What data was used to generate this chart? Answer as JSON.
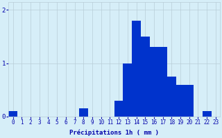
{
  "hours": [
    0,
    1,
    2,
    3,
    4,
    5,
    6,
    7,
    8,
    9,
    10,
    11,
    12,
    13,
    14,
    15,
    16,
    17,
    18,
    19,
    20,
    21,
    22,
    23
  ],
  "values": [
    0.1,
    0.0,
    0.0,
    0.0,
    0.0,
    0.0,
    0.0,
    0.0,
    0.15,
    0.0,
    0.0,
    0.0,
    0.3,
    1.0,
    1.8,
    1.5,
    1.3,
    1.3,
    0.75,
    0.6,
    0.6,
    0.0,
    0.1,
    0.0
  ],
  "bar_color": "#0033cc",
  "background_color": "#d6eef8",
  "grid_color": "#b8cdd8",
  "text_color": "#0000aa",
  "xlabel": "Précipitations 1h ( mm )",
  "ylim": [
    0,
    2.15
  ],
  "yticks": [
    0,
    1,
    2
  ],
  "label_fontsize": 6.5,
  "tick_fontsize": 5.5,
  "bar_width": 1.0
}
